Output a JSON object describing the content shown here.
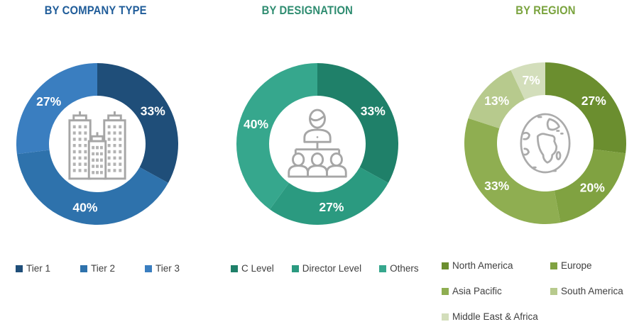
{
  "page": {
    "background": "#FFFFFF"
  },
  "chart_data": [
    {
      "type": "pie",
      "variant": "donut",
      "title": "BY COMPANY TYPE",
      "title_color": "#1F5C99",
      "unit": "%",
      "start_angle_deg": 0,
      "direction": "clockwise",
      "legend_position": "bottom",
      "center_icon": "buildings-icon",
      "segments": [
        {
          "label": "Tier 1",
          "value": 33,
          "color": "#1F4E79"
        },
        {
          "label": "Tier 2",
          "value": 40,
          "color": "#2E72AC"
        },
        {
          "label": "Tier 3",
          "value": 27,
          "color": "#3A7EC0"
        }
      ]
    },
    {
      "type": "pie",
      "variant": "donut",
      "title": "BY DESIGNATION",
      "title_color": "#2E8C70",
      "unit": "%",
      "start_angle_deg": 0,
      "direction": "clockwise",
      "legend_position": "bottom",
      "center_icon": "org-chart-icon",
      "segments": [
        {
          "label": "C Level",
          "value": 33,
          "color": "#1F8069"
        },
        {
          "label": "Director Level",
          "value": 27,
          "color": "#2B9A80"
        },
        {
          "label": "Others",
          "value": 40,
          "color": "#36A78D"
        }
      ]
    },
    {
      "type": "pie",
      "variant": "donut",
      "title": "BY REGION",
      "title_color": "#7AA33E",
      "unit": "%",
      "start_angle_deg": 0,
      "direction": "clockwise",
      "legend_position": "bottom",
      "center_icon": "globe-icon",
      "segments": [
        {
          "label": "North America",
          "value": 27,
          "color": "#6B8E2F"
        },
        {
          "label": "Europe",
          "value": 20,
          "color": "#80A241"
        },
        {
          "label": "Asia Pacific",
          "value": 33,
          "color": "#8FAE51"
        },
        {
          "label": "South America",
          "value": 13,
          "color": "#B7CA8D"
        },
        {
          "label": "Middle East & Africa",
          "value": 7,
          "color": "#D3DEBB"
        }
      ]
    }
  ]
}
